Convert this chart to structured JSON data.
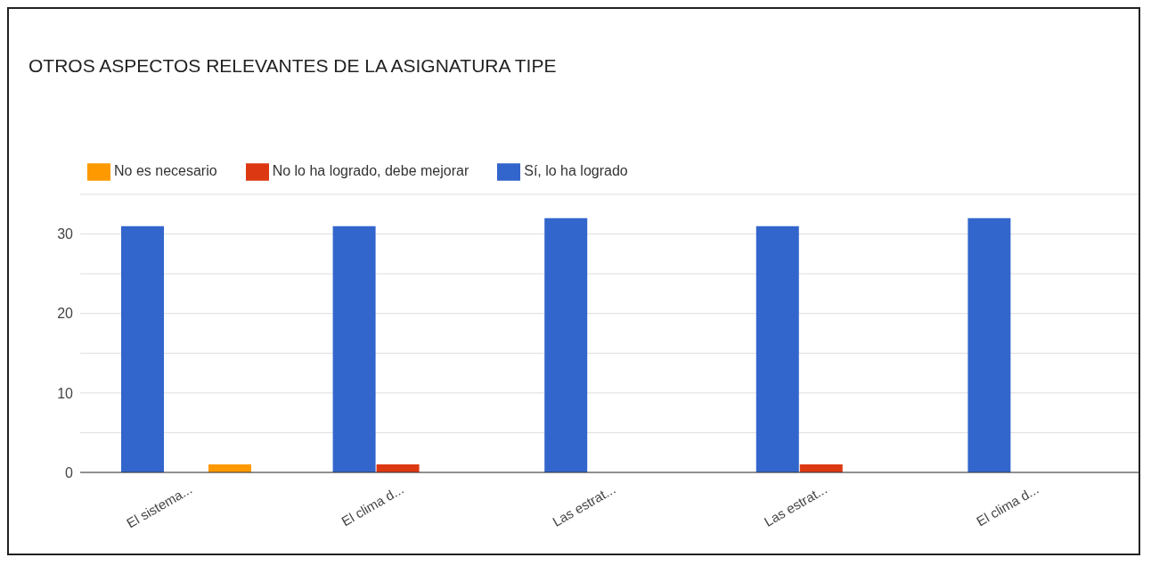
{
  "chart_data": {
    "type": "bar",
    "title": "OTROS ASPECTOS RELEVANTES DE LA ASIGNATURA TIPE",
    "categories": [
      "El sistema...",
      "El clima d...",
      "Las estrat...",
      "Las estrat...",
      "El clima d..."
    ],
    "series": [
      {
        "name": "Sí, lo ha logrado",
        "color": "#3366cc",
        "values": [
          31,
          31,
          32,
          31,
          32
        ]
      },
      {
        "name": "No lo ha logrado, debe mejorar",
        "color": "#dc3912",
        "values": [
          0,
          1,
          0,
          1,
          0
        ]
      },
      {
        "name": "No es necesario",
        "color": "#ff9900",
        "values": [
          1,
          0,
          0,
          0,
          0
        ]
      }
    ],
    "ylim": [
      0,
      35
    ],
    "yticks": [
      0,
      {
        "value": 5,
        "label": null
      },
      10,
      {
        "value": 15,
        "label": null
      },
      20,
      {
        "value": 25,
        "label": null
      },
      30,
      {
        "value": 35,
        "label": null
      }
    ],
    "grid": "y",
    "legend": "top left"
  }
}
